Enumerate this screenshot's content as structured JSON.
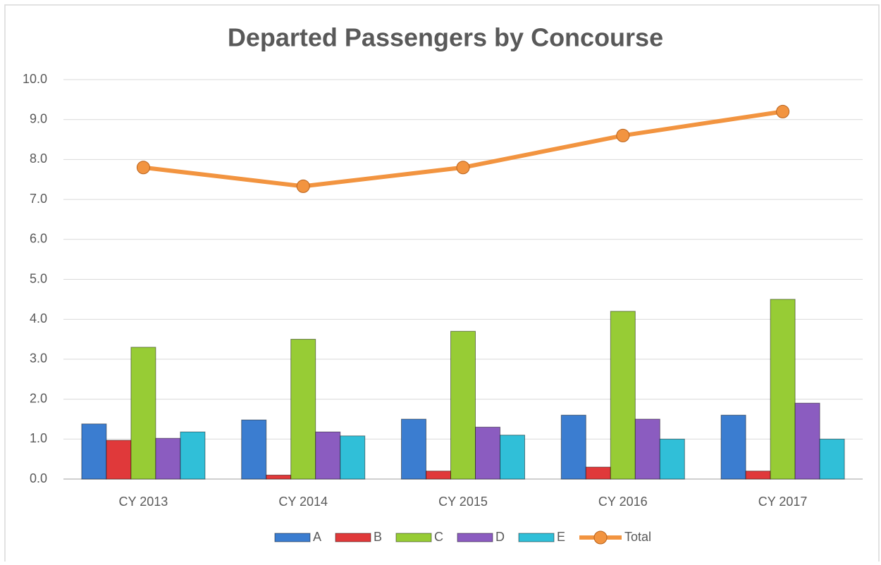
{
  "chart_data": {
    "type": "combo",
    "title": "Departed Passengers by Concourse",
    "categories": [
      "CY 2013",
      "CY 2014",
      "CY 2015",
      "CY 2016",
      "CY 2017"
    ],
    "series": [
      {
        "name": "A",
        "type": "bar",
        "color": "#3b7dd0",
        "values": [
          1.38,
          1.48,
          1.5,
          1.6,
          1.6
        ]
      },
      {
        "name": "B",
        "type": "bar",
        "color": "#e0393a",
        "values": [
          0.97,
          0.1,
          0.2,
          0.3,
          0.2
        ]
      },
      {
        "name": "C",
        "type": "bar",
        "color": "#97cc35",
        "values": [
          3.3,
          3.5,
          3.7,
          4.2,
          4.5
        ]
      },
      {
        "name": "D",
        "type": "bar",
        "color": "#8b5cc0",
        "values": [
          1.02,
          1.18,
          1.3,
          1.5,
          1.9
        ]
      },
      {
        "name": "E",
        "type": "bar",
        "color": "#30bfd8",
        "values": [
          1.18,
          1.08,
          1.1,
          1.0,
          1.0
        ]
      },
      {
        "name": "Total",
        "type": "line",
        "color": "#f29440",
        "values": [
          7.8,
          7.33,
          7.8,
          8.6,
          9.2
        ]
      }
    ],
    "ylim": [
      0,
      10
    ],
    "yticks": [
      {
        "value": 0,
        "label": "0.0"
      },
      {
        "value": 1,
        "label": "1.0"
      },
      {
        "value": 2,
        "label": "2.0"
      },
      {
        "value": 3,
        "label": "3.0"
      },
      {
        "value": 4,
        "label": "4.0"
      },
      {
        "value": 5,
        "label": "5.0"
      },
      {
        "value": 6,
        "label": "6.0"
      },
      {
        "value": 7,
        "label": "7.0"
      },
      {
        "value": 8,
        "label": "8.0"
      },
      {
        "value": 9,
        "label": "9.0"
      },
      {
        "value": 10,
        "label": "10.0"
      }
    ],
    "grid": true,
    "legend": "bottom"
  }
}
